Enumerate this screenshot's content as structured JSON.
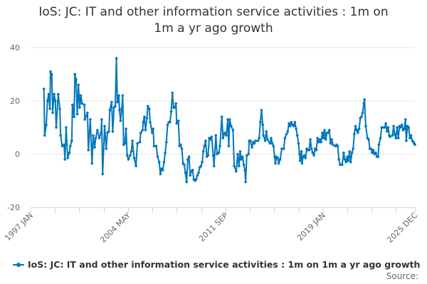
{
  "chart_data": {
    "type": "line",
    "title": "IoS: JC: IT and other information service activities : 1m on 1m a yr ago growth",
    "title_lines": [
      "IoS: JC: IT and other information service activities : 1m on",
      "1m a yr ago growth"
    ],
    "xlabel": "",
    "ylabel": "",
    "xlim": [
      1997.0,
      2025.92
    ],
    "ylim": [
      -20,
      40
    ],
    "yticks": [
      {
        "value": 40,
        "label": "40"
      },
      {
        "value": 20,
        "label": "20"
      },
      {
        "value": 0,
        "label": "0"
      },
      {
        "value": -20,
        "label": "-20"
      }
    ],
    "xticks_minor_step_years": 1.8333,
    "xticks": [
      {
        "value": 1997.0,
        "label": "1997 JAN"
      },
      {
        "value": 2004.33,
        "label": "2004 MAY"
      },
      {
        "value": 2011.67,
        "label": "2011 SEP"
      },
      {
        "value": 2019.0,
        "label": "2019 JAN"
      },
      {
        "value": 2025.92,
        "label": "2025 DEC"
      }
    ],
    "grid": true,
    "legend_position": "bottom",
    "source_label": "Source:",
    "colors": {
      "series": "#0077bb",
      "grid": "#e6e6e6",
      "axis": "#ccd6eb"
    },
    "series": [
      {
        "name": "IoS: JC: IT and other information service activities : 1m on 1m a yr ago growth",
        "points": [
          [
            1998.0,
            24.5
          ],
          [
            1998.06,
            7
          ],
          [
            1998.18,
            11
          ],
          [
            1998.27,
            20
          ],
          [
            1998.36,
            22.5
          ],
          [
            1998.45,
            17
          ],
          [
            1998.5,
            31
          ],
          [
            1998.59,
            30
          ],
          [
            1998.66,
            15.5
          ],
          [
            1998.77,
            22.5
          ],
          [
            1998.86,
            20
          ],
          [
            1998.93,
            10
          ],
          [
            1999.08,
            22.5
          ],
          [
            1999.2,
            17
          ],
          [
            1999.26,
            7
          ],
          [
            1999.38,
            3
          ],
          [
            1999.52,
            3.5
          ],
          [
            1999.58,
            -2
          ],
          [
            1999.67,
            10
          ],
          [
            1999.79,
            -1.5
          ],
          [
            1999.92,
            0.5
          ],
          [
            1999.99,
            3
          ],
          [
            2000.1,
            5
          ],
          [
            2000.15,
            18.5
          ],
          [
            2000.28,
            14
          ],
          [
            2000.33,
            30
          ],
          [
            2000.42,
            28
          ],
          [
            2000.51,
            15
          ],
          [
            2000.6,
            26
          ],
          [
            2000.69,
            17.5
          ],
          [
            2000.78,
            22
          ],
          [
            2000.87,
            19
          ],
          [
            2001.05,
            18.5
          ],
          [
            2001.08,
            13
          ],
          [
            2001.28,
            15.5
          ],
          [
            2001.35,
            1.5
          ],
          [
            2001.49,
            13
          ],
          [
            2001.62,
            -3.5
          ],
          [
            2001.71,
            7
          ],
          [
            2001.82,
            2.5
          ],
          [
            2001.9,
            6
          ],
          [
            2002.03,
            9
          ],
          [
            2002.17,
            6
          ],
          [
            2002.3,
            8
          ],
          [
            2002.35,
            13
          ],
          [
            2002.42,
            -7.5
          ],
          [
            2002.57,
            10.5
          ],
          [
            2002.69,
            2
          ],
          [
            2002.78,
            8
          ],
          [
            2002.89,
            8.5
          ],
          [
            2002.96,
            16.5
          ],
          [
            2003.1,
            19.5
          ],
          [
            2003.18,
            8.5
          ],
          [
            2003.28,
            17.5
          ],
          [
            2003.37,
            18
          ],
          [
            2003.46,
            36
          ],
          [
            2003.53,
            19.5
          ],
          [
            2003.64,
            22
          ],
          [
            2003.69,
            16.5
          ],
          [
            2003.77,
            12.5
          ],
          [
            2003.86,
            17
          ],
          [
            2003.93,
            22
          ],
          [
            2004.0,
            3.5
          ],
          [
            2004.09,
            4
          ],
          [
            2004.18,
            9.5
          ],
          [
            2004.27,
            -0.5
          ],
          [
            2004.36,
            -2
          ],
          [
            2004.5,
            -0.5
          ],
          [
            2004.59,
            1
          ],
          [
            2004.66,
            5
          ],
          [
            2004.8,
            -1.5
          ],
          [
            2004.93,
            -4.5
          ],
          [
            2005.04,
            4
          ],
          [
            2005.22,
            4.5
          ],
          [
            2005.29,
            8
          ],
          [
            2005.43,
            9
          ],
          [
            2005.48,
            12
          ],
          [
            2005.56,
            14
          ],
          [
            2005.65,
            9
          ],
          [
            2005.75,
            13.5
          ],
          [
            2005.82,
            18
          ],
          [
            2005.93,
            17
          ],
          [
            2006.0,
            12
          ],
          [
            2006.15,
            8
          ],
          [
            2006.22,
            9.5
          ],
          [
            2006.29,
            3
          ],
          [
            2006.45,
            3
          ],
          [
            2006.56,
            -1
          ],
          [
            2006.68,
            -3
          ],
          [
            2006.77,
            -7.5
          ],
          [
            2006.86,
            -5.5
          ],
          [
            2006.95,
            -6
          ],
          [
            2007.04,
            -3
          ],
          [
            2007.13,
            0.5
          ],
          [
            2007.22,
            4.5
          ],
          [
            2007.31,
            11
          ],
          [
            2007.4,
            12
          ],
          [
            2007.49,
            12
          ],
          [
            2007.58,
            16
          ],
          [
            2007.67,
            23
          ],
          [
            2007.76,
            17.5
          ],
          [
            2007.85,
            17.5
          ],
          [
            2007.94,
            19
          ],
          [
            2007.99,
            11.5
          ],
          [
            2008.12,
            12.5
          ],
          [
            2008.21,
            3
          ],
          [
            2008.29,
            3.5
          ],
          [
            2008.38,
            2
          ],
          [
            2008.47,
            -3.5
          ],
          [
            2008.56,
            -4
          ],
          [
            2008.65,
            -7
          ],
          [
            2008.74,
            -10.5
          ],
          [
            2008.83,
            -2
          ],
          [
            2008.92,
            -1
          ],
          [
            2009.01,
            -8
          ],
          [
            2009.1,
            -6.5
          ],
          [
            2009.19,
            -6
          ],
          [
            2009.28,
            -9.5
          ],
          [
            2009.37,
            -10
          ],
          [
            2009.46,
            -9.5
          ],
          [
            2009.55,
            -8
          ],
          [
            2009.64,
            -7
          ],
          [
            2009.73,
            -5
          ],
          [
            2009.82,
            -4.5
          ],
          [
            2009.91,
            -3
          ],
          [
            2010.0,
            1
          ],
          [
            2010.08,
            3
          ],
          [
            2010.17,
            5
          ],
          [
            2010.26,
            -1
          ],
          [
            2010.35,
            -0.5
          ],
          [
            2010.44,
            6
          ],
          [
            2010.53,
            5.5
          ],
          [
            2010.62,
            6.5
          ],
          [
            2010.75,
            -0.5
          ],
          [
            2010.8,
            -4.5
          ],
          [
            2010.94,
            7
          ],
          [
            2011.03,
            0
          ],
          [
            2011.16,
            0.5
          ],
          [
            2011.25,
            3
          ],
          [
            2011.39,
            14
          ],
          [
            2011.48,
            6
          ],
          [
            2011.61,
            8
          ],
          [
            2011.73,
            7
          ],
          [
            2011.84,
            13
          ],
          [
            2011.91,
            3
          ],
          [
            2011.98,
            13
          ],
          [
            2012.09,
            10.5
          ],
          [
            2012.23,
            9
          ],
          [
            2012.32,
            -4.5
          ],
          [
            2012.47,
            -6.5
          ],
          [
            2012.59,
            0
          ],
          [
            2012.68,
            -4.5
          ],
          [
            2012.77,
            1
          ],
          [
            2012.86,
            -2
          ],
          [
            2012.95,
            -1
          ],
          [
            2013.04,
            -4
          ],
          [
            2013.13,
            -6
          ],
          [
            2013.18,
            -10.5
          ],
          [
            2013.27,
            -0.5
          ],
          [
            2013.4,
            0
          ],
          [
            2013.45,
            5
          ],
          [
            2013.54,
            5
          ],
          [
            2013.66,
            2.5
          ],
          [
            2013.75,
            4.5
          ],
          [
            2013.84,
            4
          ],
          [
            2013.93,
            5
          ],
          [
            2014.11,
            5
          ],
          [
            2014.2,
            6
          ],
          [
            2014.29,
            12
          ],
          [
            2014.38,
            16.5
          ],
          [
            2014.47,
            11
          ],
          [
            2014.52,
            7
          ],
          [
            2014.65,
            5
          ],
          [
            2014.74,
            8.5
          ],
          [
            2014.83,
            5.5
          ],
          [
            2015.01,
            4
          ],
          [
            2015.1,
            6
          ],
          [
            2015.19,
            4
          ],
          [
            2015.28,
            3
          ],
          [
            2015.37,
            -1
          ],
          [
            2015.42,
            -3.5
          ],
          [
            2015.51,
            -1
          ],
          [
            2015.6,
            -1.5
          ],
          [
            2015.67,
            -3.5
          ],
          [
            2015.78,
            -2
          ],
          [
            2015.9,
            2
          ],
          [
            2016.05,
            2
          ],
          [
            2016.14,
            6
          ],
          [
            2016.26,
            7.5
          ],
          [
            2016.35,
            8.5
          ],
          [
            2016.44,
            11.5
          ],
          [
            2016.53,
            10.5
          ],
          [
            2016.62,
            12
          ],
          [
            2016.71,
            11
          ],
          [
            2016.8,
            10.5
          ],
          [
            2016.89,
            12
          ],
          [
            2016.98,
            9.5
          ],
          [
            2017.07,
            7
          ],
          [
            2017.16,
            4
          ],
          [
            2017.24,
            0
          ],
          [
            2017.28,
            -2.5
          ],
          [
            2017.39,
            1
          ],
          [
            2017.42,
            -3.5
          ],
          [
            2017.51,
            -1
          ],
          [
            2017.6,
            -0.5
          ],
          [
            2017.69,
            -1.5
          ],
          [
            2017.78,
            2
          ],
          [
            2017.87,
            1.5
          ],
          [
            2017.96,
            1.5
          ],
          [
            2018.05,
            5.5
          ],
          [
            2018.14,
            2
          ],
          [
            2018.23,
            0.5
          ],
          [
            2018.32,
            -0.5
          ],
          [
            2018.41,
            2
          ],
          [
            2018.5,
            1.5
          ],
          [
            2018.59,
            6
          ],
          [
            2018.68,
            4.5
          ],
          [
            2018.77,
            5.5
          ],
          [
            2018.86,
            4.5
          ],
          [
            2018.95,
            8
          ],
          [
            2019.04,
            6
          ],
          [
            2019.12,
            9
          ],
          [
            2019.21,
            5.5
          ],
          [
            2019.3,
            8
          ],
          [
            2019.39,
            8
          ],
          [
            2019.48,
            9
          ],
          [
            2019.57,
            4
          ],
          [
            2019.66,
            5.5
          ],
          [
            2019.75,
            3.5
          ],
          [
            2019.93,
            3
          ],
          [
            2020.02,
            3.5
          ],
          [
            2020.11,
            3
          ],
          [
            2020.2,
            -2
          ],
          [
            2020.29,
            -4
          ],
          [
            2020.44,
            -4
          ],
          [
            2020.56,
            0.5
          ],
          [
            2020.65,
            -2
          ],
          [
            2020.74,
            -3
          ],
          [
            2020.83,
            -1
          ],
          [
            2020.91,
            -2.5
          ],
          [
            2021.0,
            1
          ],
          [
            2021.09,
            -3
          ],
          [
            2021.18,
            0.5
          ],
          [
            2021.27,
            2
          ],
          [
            2021.36,
            7.5
          ],
          [
            2021.45,
            10.5
          ],
          [
            2021.54,
            9
          ],
          [
            2021.63,
            8
          ],
          [
            2021.72,
            9.5
          ],
          [
            2021.81,
            13.5
          ],
          [
            2021.9,
            14
          ],
          [
            2021.99,
            15.5
          ],
          [
            2022.08,
            19
          ],
          [
            2022.13,
            20.5
          ],
          [
            2022.22,
            10.5
          ],
          [
            2022.35,
            6
          ],
          [
            2022.44,
            5.5
          ],
          [
            2022.53,
            2
          ],
          [
            2022.61,
            2
          ],
          [
            2022.7,
            0.5
          ],
          [
            2022.79,
            1.5
          ],
          [
            2022.88,
            0
          ],
          [
            2022.97,
            0.5
          ],
          [
            2023.06,
            -1
          ],
          [
            2023.15,
            -1
          ],
          [
            2023.21,
            3.5
          ],
          [
            2023.33,
            6
          ],
          [
            2023.42,
            10
          ],
          [
            2023.51,
            10
          ],
          [
            2023.65,
            10
          ],
          [
            2023.73,
            11.5
          ],
          [
            2023.82,
            8.5
          ],
          [
            2023.91,
            10
          ],
          [
            2023.99,
            7
          ],
          [
            2024.05,
            6.5
          ],
          [
            2024.23,
            7
          ],
          [
            2024.32,
            10.5
          ],
          [
            2024.4,
            7.5
          ],
          [
            2024.49,
            6
          ],
          [
            2024.58,
            10
          ],
          [
            2024.67,
            6
          ],
          [
            2024.76,
            10.5
          ],
          [
            2024.85,
            10
          ],
          [
            2024.94,
            11
          ],
          [
            2025.03,
            9
          ],
          [
            2025.12,
            9.5
          ],
          [
            2025.21,
            13
          ],
          [
            2025.27,
            5
          ],
          [
            2025.36,
            10.5
          ],
          [
            2025.45,
            10
          ],
          [
            2025.54,
            6
          ],
          [
            2025.63,
            7
          ],
          [
            2025.72,
            5
          ],
          [
            2025.81,
            4.5
          ],
          [
            2025.87,
            4
          ],
          [
            2025.92,
            3.5
          ]
        ]
      }
    ]
  }
}
